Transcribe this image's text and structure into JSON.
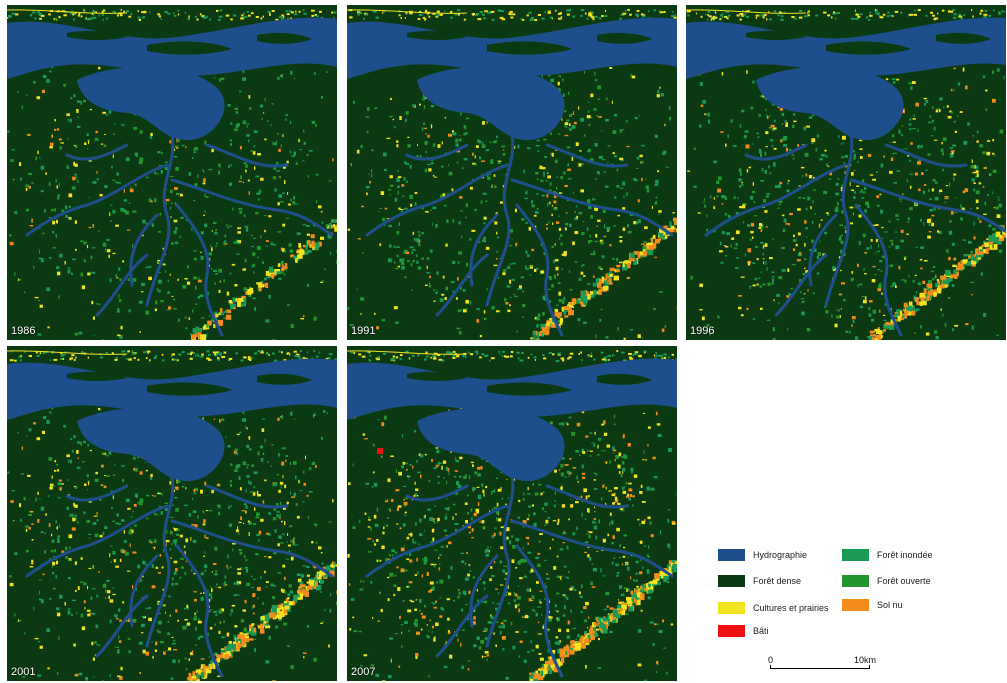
{
  "panels": [
    {
      "year": "1986"
    },
    {
      "year": "1991"
    },
    {
      "year": "1996"
    },
    {
      "year": "2001"
    },
    {
      "year": "2007"
    }
  ],
  "legend": {
    "items": [
      {
        "label": "Hydrographie",
        "color": "#1f4e8c"
      },
      {
        "label": "Forêt dense",
        "color": "#0b3a12"
      },
      {
        "label": "Cultures et prairies",
        "color": "#f2e21f"
      },
      {
        "label": "Bâti",
        "color": "#ee1111"
      },
      {
        "label": "Forêt inondée",
        "color": "#1a9a55"
      },
      {
        "label": "Forêt ouverte",
        "color": "#23952f"
      },
      {
        "label": "Sol nu",
        "color": "#f28c1b"
      }
    ]
  },
  "scale": {
    "start": "0",
    "end": "10km"
  }
}
